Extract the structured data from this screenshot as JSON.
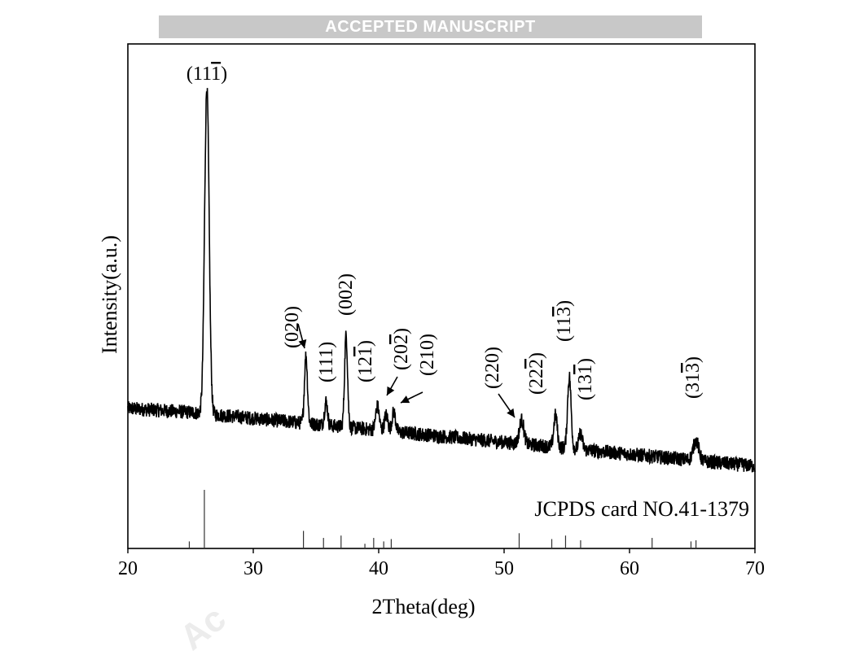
{
  "banner": "ACCEPTED MANUSCRIPT",
  "watermark": "Ac",
  "chart_data": {
    "type": "line",
    "xlabel": "2Theta(deg)",
    "ylabel": "Intensity(a.u.)",
    "xlim": [
      20,
      70
    ],
    "xticks": [
      20,
      30,
      40,
      50,
      60,
      70
    ],
    "grid": false,
    "reference_label": "JCPDS card NO.41-1379",
    "series": [
      {
        "baseline": [
          [
            20,
            0.18
          ],
          [
            25,
            0.17
          ],
          [
            30,
            0.155
          ],
          [
            35,
            0.14
          ],
          [
            40,
            0.125
          ],
          [
            45,
            0.11
          ],
          [
            50,
            0.095
          ],
          [
            55,
            0.08
          ],
          [
            60,
            0.065
          ],
          [
            65,
            0.05
          ],
          [
            70,
            0.035
          ]
        ],
        "peaks": [
          {
            "x": 26.3,
            "height": 0.82,
            "width": 0.18
          },
          {
            "x": 34.2,
            "height": 0.17,
            "width": 0.12
          },
          {
            "x": 35.8,
            "height": 0.06,
            "width": 0.12
          },
          {
            "x": 37.4,
            "height": 0.23,
            "width": 0.12
          },
          {
            "x": 39.9,
            "height": 0.06,
            "width": 0.14
          },
          {
            "x": 40.6,
            "height": 0.04,
            "width": 0.14
          },
          {
            "x": 41.2,
            "height": 0.05,
            "width": 0.14
          },
          {
            "x": 51.4,
            "height": 0.06,
            "width": 0.18
          },
          {
            "x": 54.1,
            "height": 0.08,
            "width": 0.14
          },
          {
            "x": 55.2,
            "height": 0.18,
            "width": 0.14
          },
          {
            "x": 56.1,
            "height": 0.04,
            "width": 0.14
          },
          {
            "x": 65.3,
            "height": 0.05,
            "width": 0.22
          }
        ],
        "noise": 0.018
      }
    ],
    "peak_labels": [
      {
        "text": "(11",
        "bar": "1",
        "close": ")",
        "x": 26.3,
        "orientation": "horizontal"
      },
      {
        "text": "(020)",
        "x": 34.2,
        "orientation": "vertical",
        "arrow": true
      },
      {
        "text": "(111)",
        "x": 35.8,
        "orientation": "vertical"
      },
      {
        "text": "(002)",
        "x": 37.4,
        "orientation": "vertical"
      },
      {
        "text": "(12",
        "bar": "1",
        "close": ")",
        "x": 39.9,
        "orientation": "vertical"
      },
      {
        "text": "(20",
        "bar": "2",
        "close": ")",
        "x": 40.6,
        "orientation": "vertical",
        "arrow": true
      },
      {
        "text": "(210)",
        "x": 41.2,
        "orientation": "vertical",
        "arrow": true
      },
      {
        "text": "(220)",
        "x": 51.4,
        "orientation": "vertical",
        "arrow": true
      },
      {
        "text": "(22",
        "bar": "2",
        "close": ")",
        "x": 54.1,
        "orientation": "vertical"
      },
      {
        "text": "(11",
        "bar": "3",
        "close": ")",
        "x": 55.2,
        "orientation": "vertical"
      },
      {
        "text": "(13",
        "bar": "1",
        "close": ")",
        "x": 56.1,
        "orientation": "vertical"
      },
      {
        "text": "(31",
        "bar": "3",
        "close": ")",
        "x": 65.3,
        "orientation": "vertical"
      }
    ],
    "reference_lines": [
      {
        "x": 24.9,
        "intensity": 0.12
      },
      {
        "x": 26.1,
        "intensity": 1.0
      },
      {
        "x": 34.0,
        "intensity": 0.3
      },
      {
        "x": 35.6,
        "intensity": 0.18
      },
      {
        "x": 37.0,
        "intensity": 0.22
      },
      {
        "x": 38.9,
        "intensity": 0.08
      },
      {
        "x": 39.6,
        "intensity": 0.18
      },
      {
        "x": 40.4,
        "intensity": 0.12
      },
      {
        "x": 41.0,
        "intensity": 0.16
      },
      {
        "x": 51.2,
        "intensity": 0.26
      },
      {
        "x": 53.8,
        "intensity": 0.16
      },
      {
        "x": 54.9,
        "intensity": 0.22
      },
      {
        "x": 56.1,
        "intensity": 0.14
      },
      {
        "x": 61.8,
        "intensity": 0.18
      },
      {
        "x": 64.9,
        "intensity": 0.12
      },
      {
        "x": 65.3,
        "intensity": 0.14
      }
    ]
  }
}
